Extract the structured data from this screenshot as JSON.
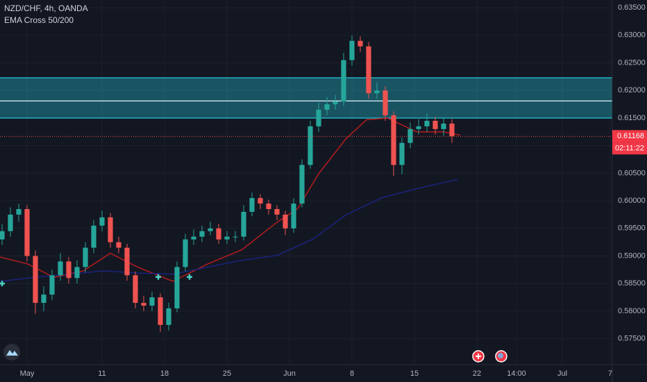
{
  "chart_data": {
    "type": "candlestick",
    "title": "NZD/CHF, 4h, OANDA",
    "subtitle": "EMA Cross 50/200",
    "up_color": "#26a69a",
    "down_color": "#ef5350",
    "x": [
      -12,
      -8,
      -4,
      0,
      4,
      8,
      12,
      16,
      20,
      24,
      28,
      32,
      36,
      40,
      44,
      48,
      52,
      56,
      60,
      64,
      68,
      72,
      76,
      80,
      84,
      88,
      92,
      96,
      100,
      104,
      108,
      112,
      116,
      120,
      124,
      128,
      132,
      136,
      140,
      144,
      148,
      152,
      156,
      160,
      164,
      168,
      172,
      176,
      180,
      184,
      188,
      192,
      196,
      200,
      204
    ],
    "open": [
      0.593,
      0.5945,
      0.5975,
      0.5985,
      0.59,
      0.5815,
      0.583,
      0.5865,
      0.589,
      0.586,
      0.588,
      0.5915,
      0.5955,
      0.597,
      0.5925,
      0.5915,
      0.5865,
      0.5815,
      0.581,
      0.5825,
      0.5775,
      0.5805,
      0.588,
      0.593,
      0.5935,
      0.5945,
      0.595,
      0.593,
      0.5935,
      0.5935,
      0.598,
      0.6005,
      0.5995,
      0.5985,
      0.5975,
      0.595,
      0.5995,
      0.6065,
      0.6135,
      0.6165,
      0.6175,
      0.618,
      0.6255,
      0.629,
      0.628,
      0.6195,
      0.62,
      0.6155,
      0.6065,
      0.6105,
      0.613,
      0.6135,
      0.6145,
      0.613,
      0.614
    ],
    "high": [
      0.5958,
      0.5988,
      0.5995,
      0.5992,
      0.591,
      0.5845,
      0.5875,
      0.5905,
      0.5898,
      0.5892,
      0.5925,
      0.5965,
      0.5982,
      0.5978,
      0.5935,
      0.5922,
      0.5872,
      0.5828,
      0.5835,
      0.5832,
      0.5815,
      0.589,
      0.594,
      0.5948,
      0.5955,
      0.5962,
      0.5958,
      0.5945,
      0.5945,
      0.5992,
      0.6015,
      0.6012,
      0.6002,
      0.5992,
      0.5982,
      0.6005,
      0.6075,
      0.6145,
      0.6178,
      0.6188,
      0.6192,
      0.6268,
      0.63,
      0.6298,
      0.6288,
      0.6215,
      0.6208,
      0.6162,
      0.6115,
      0.6142,
      0.6148,
      0.6158,
      0.6152,
      0.615,
      0.6148
    ],
    "low": [
      0.592,
      0.5935,
      0.5962,
      0.589,
      0.5795,
      0.58,
      0.582,
      0.5855,
      0.585,
      0.585,
      0.587,
      0.5905,
      0.5945,
      0.5915,
      0.5905,
      0.5855,
      0.5805,
      0.58,
      0.58,
      0.5762,
      0.5765,
      0.5798,
      0.5872,
      0.592,
      0.5925,
      0.5938,
      0.5922,
      0.5922,
      0.5925,
      0.5928,
      0.5972,
      0.5985,
      0.5975,
      0.5965,
      0.5938,
      0.5942,
      0.5988,
      0.6058,
      0.6125,
      0.6155,
      0.6165,
      0.6172,
      0.6245,
      0.627,
      0.6185,
      0.6185,
      0.6145,
      0.6045,
      0.6048,
      0.6095,
      0.612,
      0.6125,
      0.612,
      0.6118,
      0.6105
    ],
    "close": [
      0.5945,
      0.5975,
      0.5985,
      0.59,
      0.5815,
      0.583,
      0.5865,
      0.589,
      0.586,
      0.588,
      0.5915,
      0.5955,
      0.597,
      0.5925,
      0.5915,
      0.5865,
      0.5815,
      0.581,
      0.5825,
      0.5775,
      0.5805,
      0.588,
      0.593,
      0.5935,
      0.5945,
      0.595,
      0.593,
      0.5935,
      0.5935,
      0.598,
      0.6005,
      0.5995,
      0.5985,
      0.5975,
      0.595,
      0.5995,
      0.6065,
      0.6135,
      0.6165,
      0.6175,
      0.618,
      0.6255,
      0.629,
      0.628,
      0.6195,
      0.62,
      0.6155,
      0.6065,
      0.6105,
      0.613,
      0.6135,
      0.6145,
      0.613,
      0.614,
      0.6117
    ],
    "series": [
      {
        "color": "#b71c1c",
        "x": [
          -13,
          0,
          13,
          27,
          40,
          53,
          70,
          87,
          103,
          120,
          130,
          140,
          153,
          163,
          173,
          187,
          200,
          208
        ],
        "values": [
          0.5898,
          0.5886,
          0.5861,
          0.5873,
          0.5905,
          0.588,
          0.5854,
          0.5886,
          0.5911,
          0.5961,
          0.5986,
          0.6049,
          0.6112,
          0.6147,
          0.615,
          0.6125,
          0.6125,
          0.6119
        ]
      },
      {
        "color": "#1a237e",
        "x": [
          -13,
          3,
          20,
          37,
          53,
          70,
          87,
          103,
          120,
          137,
          153,
          170,
          187,
          207
        ],
        "values": [
          0.5854,
          0.5861,
          0.5867,
          0.5873,
          0.5869,
          0.5867,
          0.588,
          0.5892,
          0.5901,
          0.593,
          0.5974,
          0.6005,
          0.6022,
          0.6039
        ]
      }
    ],
    "crosses": {
      "color": "#4dd0c5",
      "x": [
        -12,
        63,
        78
      ],
      "values": [
        0.585,
        0.5862,
        0.5862
      ]
    },
    "zone": {
      "low": 0.615,
      "high": 0.6223,
      "mid": 0.6181,
      "color": "#26c6da"
    },
    "last_price": 0.61168,
    "timer": "02:11:22",
    "xlim": [
      -13,
      281
    ],
    "ylim": [
      0.5703,
      0.6364
    ],
    "xticks": [
      {
        "value": 0,
        "label": "May"
      },
      {
        "value": 36,
        "label": "11"
      },
      {
        "value": 66,
        "label": "18"
      },
      {
        "value": 96,
        "label": "25"
      },
      {
        "value": 126,
        "label": "Jun"
      },
      {
        "value": 156,
        "label": "8"
      },
      {
        "value": 186,
        "label": "15"
      },
      {
        "value": 216,
        "label": "22"
      },
      {
        "value": 235,
        "label": "14:00"
      },
      {
        "value": 257,
        "label": "Jul"
      },
      {
        "value": 280,
        "label": "7"
      }
    ],
    "yticks": [
      {
        "value": 0.575,
        "label": "0.57500"
      },
      {
        "value": 0.58,
        "label": "0.58000"
      },
      {
        "value": 0.585,
        "label": "0.58500"
      },
      {
        "value": 0.59,
        "label": "0.59000"
      },
      {
        "value": 0.595,
        "label": "0.59500"
      },
      {
        "value": 0.6,
        "label": "0.60000"
      },
      {
        "value": 0.605,
        "label": "0.60500"
      },
      {
        "value": 0.61,
        "label": "0.61000"
      },
      {
        "value": 0.615,
        "label": "0.61500"
      },
      {
        "value": 0.62,
        "label": "0.62000"
      },
      {
        "value": 0.625,
        "label": "0.62500"
      },
      {
        "value": 0.63,
        "label": "0.63000"
      },
      {
        "value": 0.635,
        "label": "0.63500"
      }
    ],
    "grid": true
  }
}
